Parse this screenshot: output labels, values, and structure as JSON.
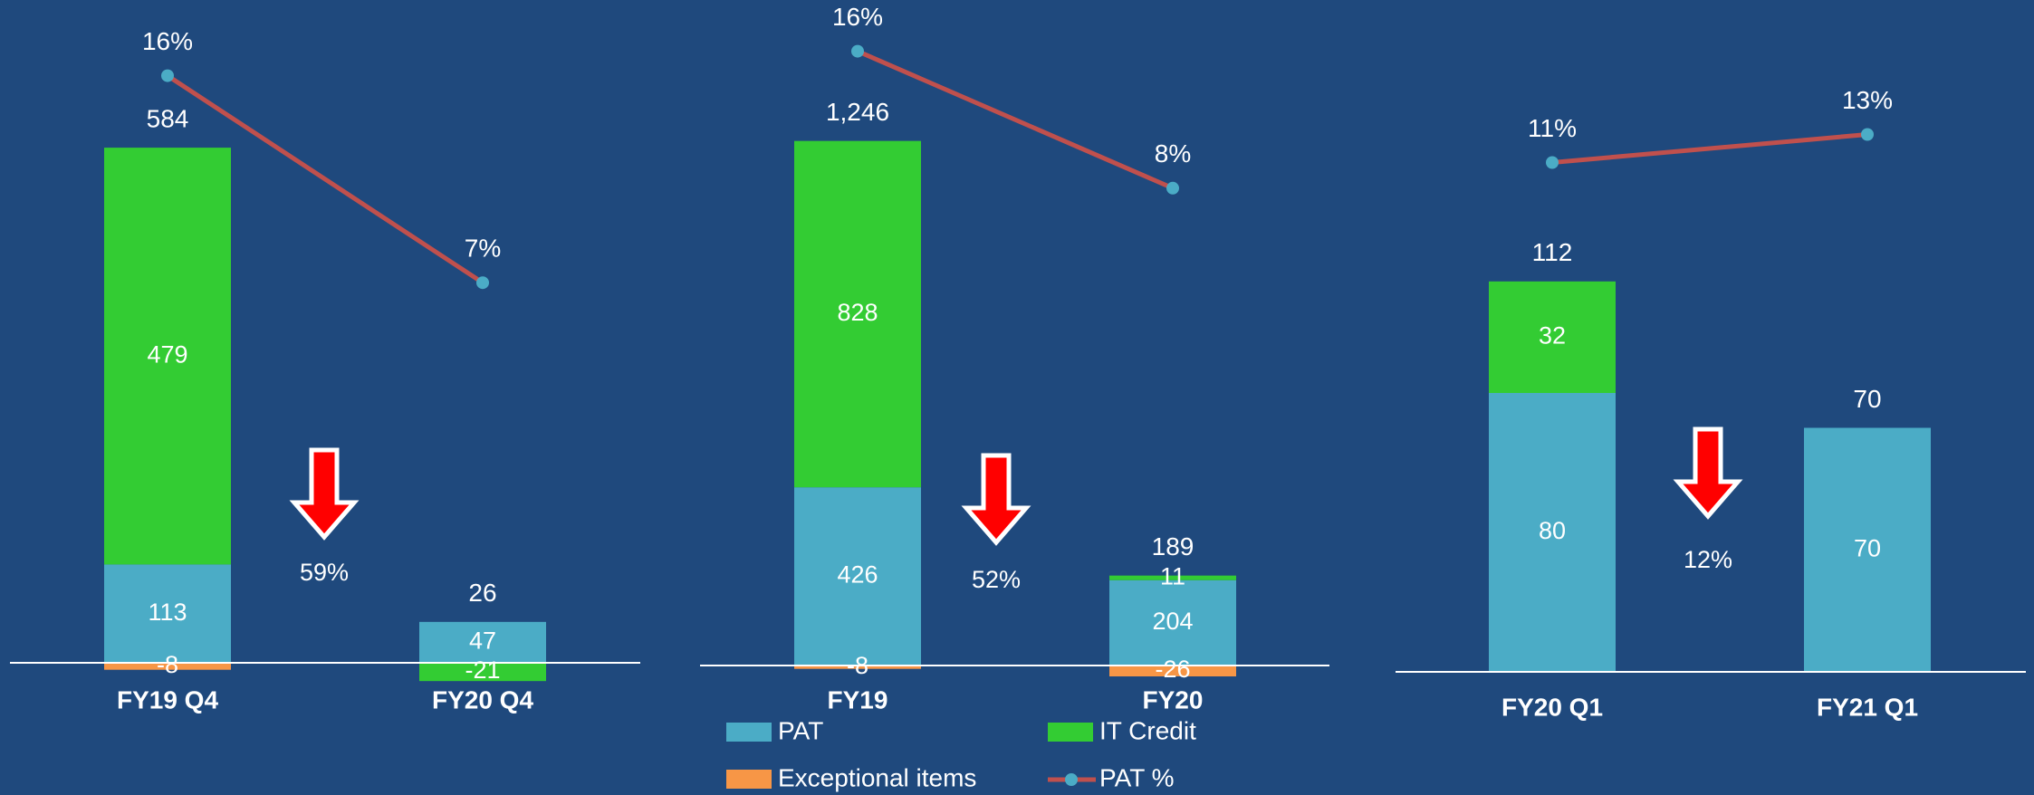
{
  "chart_data": [
    {
      "type": "bar",
      "categories": [
        "FY19 Q4",
        "FY20 Q4"
      ],
      "series": [
        {
          "type": "bar",
          "color": "#4bacc6",
          "values": [
            113,
            47
          ]
        },
        {
          "type": "bar",
          "color": "#33cc33",
          "values": [
            479,
            -21
          ]
        },
        {
          "type": "bar",
          "color": "#f79646",
          "values": [
            -8,
            null
          ]
        },
        {
          "type": "line",
          "color": "#c0504d",
          "values": [
            16,
            7
          ],
          "value_labels": [
            "16%",
            "7%"
          ]
        }
      ],
      "totals": {
        "values": [
          584,
          26
        ]
      },
      "annotation": "59%"
    },
    {
      "type": "bar",
      "categories": [
        "FY19",
        "FY20"
      ],
      "series": [
        {
          "type": "bar",
          "name": "PAT",
          "color": "#4bacc6",
          "values": [
            426,
            204
          ]
        },
        {
          "type": "bar",
          "name": "IT Credit",
          "color": "#33cc33",
          "values": [
            828,
            11
          ]
        },
        {
          "type": "bar",
          "name": "Exceptional items",
          "color": "#f79646",
          "values": [
            -8,
            -26
          ]
        },
        {
          "type": "line",
          "name": "PAT %",
          "color": "#c0504d",
          "values": [
            16,
            8
          ],
          "value_labels": [
            "16%",
            "8%"
          ]
        }
      ],
      "totals": {
        "values": [
          1246,
          189
        ],
        "value_labels": [
          "1,246",
          "189"
        ]
      },
      "annotation": "52%"
    },
    {
      "type": "bar",
      "categories": [
        "FY20 Q1",
        "FY21 Q1"
      ],
      "series": [
        {
          "type": "bar",
          "color": "#4bacc6",
          "values": [
            80,
            70
          ]
        },
        {
          "type": "bar",
          "color": "#33cc33",
          "values": [
            32,
            null
          ]
        },
        {
          "type": "line",
          "color": "#c0504d",
          "values": [
            11,
            13
          ],
          "value_labels": [
            "11%",
            "13%"
          ]
        }
      ],
      "totals": {
        "values": [
          112,
          70
        ]
      },
      "annotation": "12%"
    }
  ]
}
